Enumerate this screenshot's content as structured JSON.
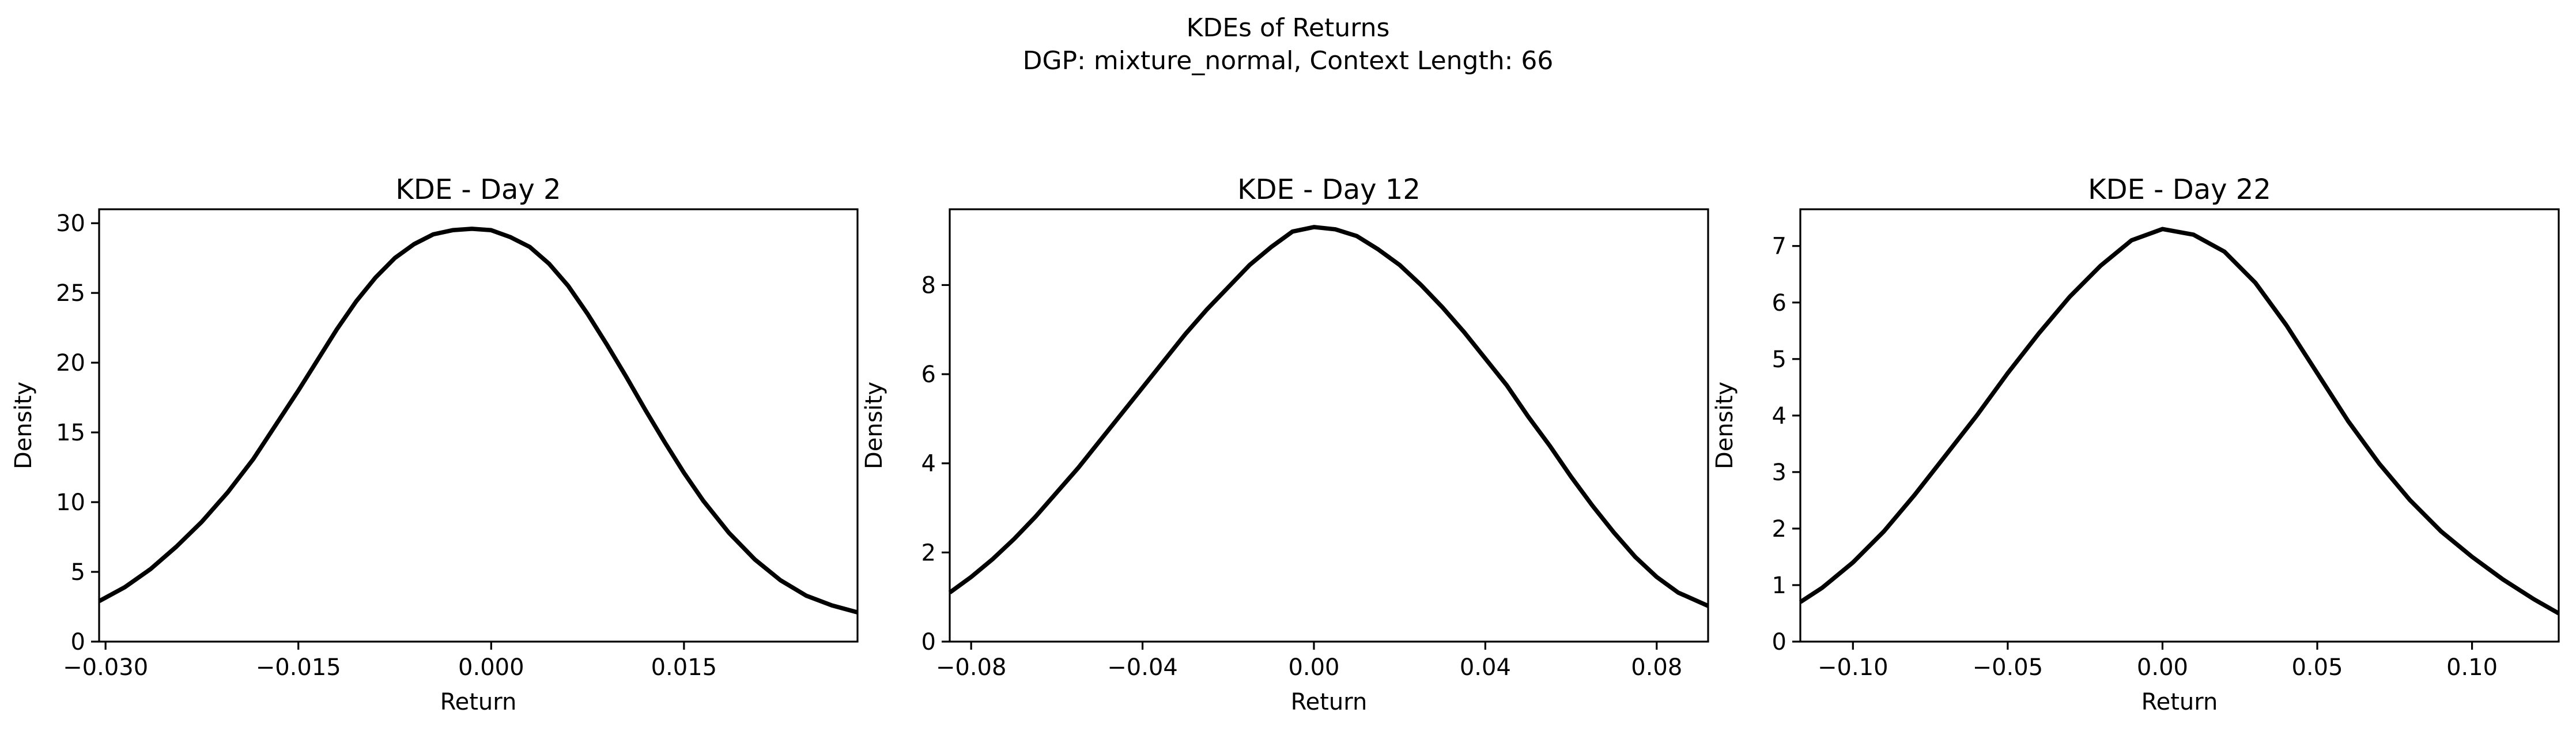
{
  "figure": {
    "title_line1": "KDEs of Returns",
    "title_line2": "DGP: mixture_normal, Context Length: 66"
  },
  "colors": {
    "line": "#000000",
    "background": "#ffffff"
  },
  "chart_data": [
    {
      "type": "line",
      "title": "KDE - Day 2",
      "xlabel": "Return",
      "ylabel": "Density",
      "xlim": [
        -0.0305,
        0.0285
      ],
      "ylim": [
        0,
        31
      ],
      "xticks": [
        -0.03,
        -0.015,
        0.0,
        0.015
      ],
      "xtick_labels": [
        "−0.030",
        "−0.015",
        "0.000",
        "0.015"
      ],
      "yticks": [
        0,
        5,
        10,
        15,
        20,
        25,
        30
      ],
      "ytick_labels": [
        "0",
        "5",
        "10",
        "15",
        "20",
        "25",
        "30"
      ],
      "grid": false,
      "series": [
        {
          "x": [
            -0.0305,
            -0.0285,
            -0.0265,
            -0.0245,
            -0.0225,
            -0.0205,
            -0.0185,
            -0.0165,
            -0.015,
            -0.0135,
            -0.012,
            -0.0105,
            -0.009,
            -0.0075,
            -0.006,
            -0.0045,
            -0.003,
            -0.0015,
            0.0,
            0.0015,
            0.003,
            0.0045,
            0.006,
            0.0075,
            0.009,
            0.0105,
            0.012,
            0.0135,
            0.015,
            0.0165,
            0.0185,
            0.0205,
            0.0225,
            0.0245,
            0.0265,
            0.0285
          ],
          "y": [
            2.9,
            3.9,
            5.2,
            6.8,
            8.6,
            10.7,
            13.1,
            15.9,
            18.0,
            20.2,
            22.4,
            24.4,
            26.1,
            27.5,
            28.5,
            29.2,
            29.5,
            29.6,
            29.5,
            29.0,
            28.3,
            27.1,
            25.5,
            23.5,
            21.3,
            19.0,
            16.6,
            14.3,
            12.1,
            10.1,
            7.8,
            5.9,
            4.4,
            3.3,
            2.6,
            2.1
          ]
        }
      ]
    },
    {
      "type": "line",
      "title": "KDE - Day 12",
      "xlabel": "Return",
      "ylabel": "Density",
      "xlim": [
        -0.085,
        0.092
      ],
      "ylim": [
        0,
        9.7
      ],
      "xticks": [
        -0.08,
        -0.04,
        0.0,
        0.04,
        0.08
      ],
      "xtick_labels": [
        "−0.08",
        "−0.04",
        "0.00",
        "0.04",
        "0.08"
      ],
      "yticks": [
        0,
        2,
        4,
        6,
        8
      ],
      "ytick_labels": [
        "0",
        "2",
        "4",
        "6",
        "8"
      ],
      "grid": false,
      "series": [
        {
          "x": [
            -0.085,
            -0.08,
            -0.075,
            -0.07,
            -0.065,
            -0.06,
            -0.055,
            -0.05,
            -0.045,
            -0.04,
            -0.035,
            -0.03,
            -0.025,
            -0.02,
            -0.015,
            -0.01,
            -0.005,
            0.0,
            0.005,
            0.01,
            0.015,
            0.02,
            0.025,
            0.03,
            0.035,
            0.04,
            0.045,
            0.05,
            0.055,
            0.06,
            0.065,
            0.07,
            0.075,
            0.08,
            0.085,
            0.092
          ],
          "y": [
            1.1,
            1.45,
            1.85,
            2.3,
            2.8,
            3.35,
            3.9,
            4.5,
            5.1,
            5.7,
            6.3,
            6.9,
            7.45,
            7.95,
            8.45,
            8.85,
            9.2,
            9.3,
            9.25,
            9.1,
            8.8,
            8.45,
            8.0,
            7.5,
            6.95,
            6.35,
            5.75,
            5.05,
            4.4,
            3.7,
            3.05,
            2.45,
            1.9,
            1.45,
            1.1,
            0.8
          ]
        }
      ]
    },
    {
      "type": "line",
      "title": "KDE - Day 22",
      "xlabel": "Return",
      "ylabel": "Density",
      "xlim": [
        -0.117,
        0.128
      ],
      "ylim": [
        0,
        7.65
      ],
      "xticks": [
        -0.1,
        -0.05,
        0.0,
        0.05,
        0.1
      ],
      "xtick_labels": [
        "−0.10",
        "−0.05",
        "0.00",
        "0.05",
        "0.10"
      ],
      "yticks": [
        0,
        1,
        2,
        3,
        4,
        5,
        6,
        7
      ],
      "ytick_labels": [
        "0",
        "1",
        "2",
        "3",
        "4",
        "5",
        "6",
        "7"
      ],
      "grid": false,
      "series": [
        {
          "x": [
            -0.117,
            -0.11,
            -0.1,
            -0.09,
            -0.08,
            -0.07,
            -0.06,
            -0.05,
            -0.04,
            -0.03,
            -0.02,
            -0.01,
            0.0,
            0.01,
            0.02,
            0.03,
            0.04,
            0.05,
            0.06,
            0.07,
            0.08,
            0.09,
            0.1,
            0.11,
            0.12,
            0.128
          ],
          "y": [
            0.7,
            0.95,
            1.4,
            1.95,
            2.6,
            3.3,
            4.0,
            4.75,
            5.45,
            6.1,
            6.65,
            7.1,
            7.3,
            7.2,
            6.9,
            6.35,
            5.6,
            4.75,
            3.9,
            3.15,
            2.5,
            1.95,
            1.5,
            1.1,
            0.75,
            0.5
          ]
        }
      ]
    }
  ]
}
